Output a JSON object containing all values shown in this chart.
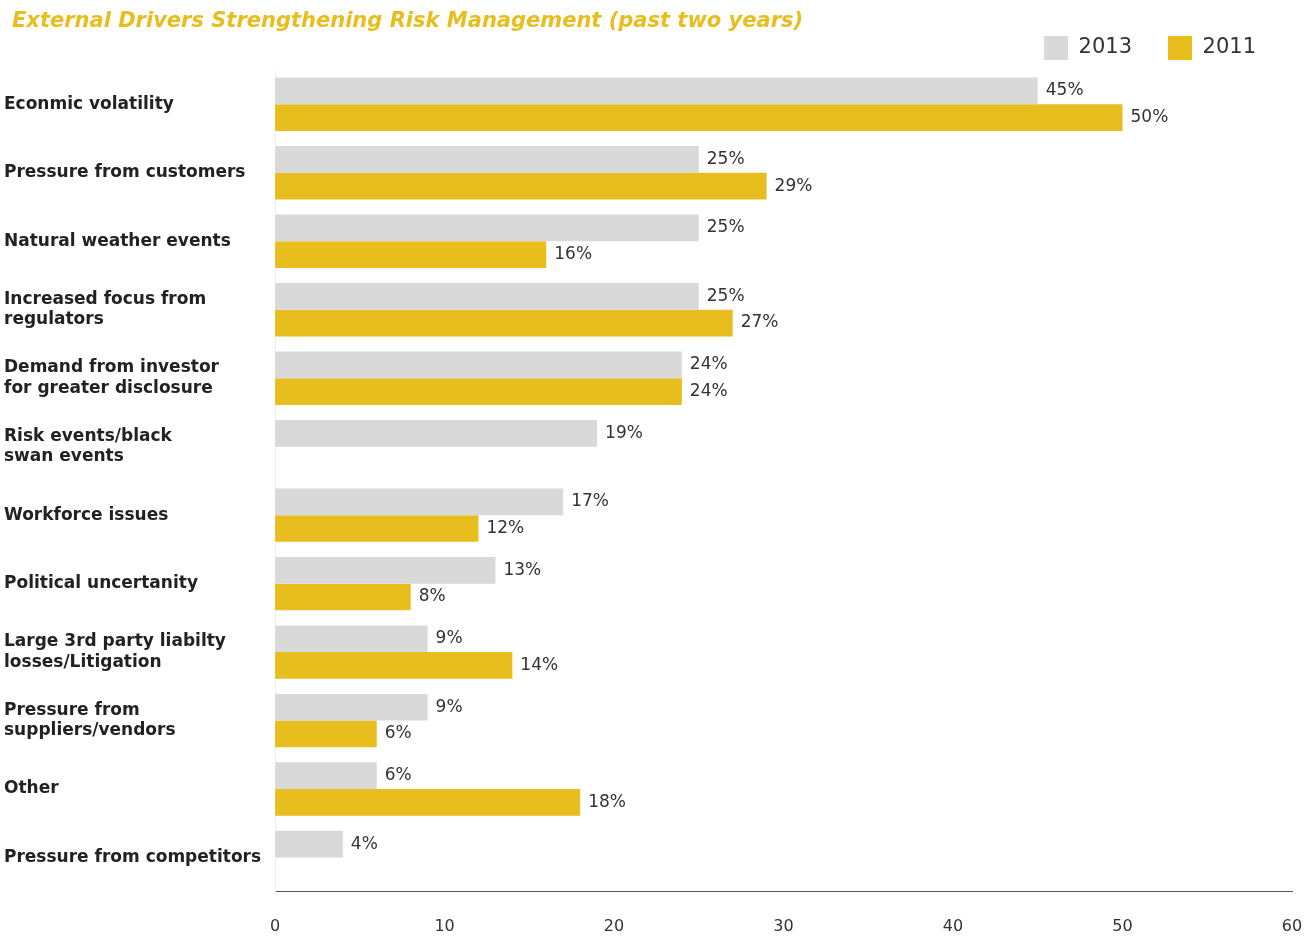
{
  "chart_data": {
    "type": "bar",
    "orientation": "horizontal",
    "title": "External Drivers Strengthening Risk Management (past two years)",
    "categories": [
      "Econmic volatility",
      "Pressure from customers",
      "Natural weather events",
      "Increased focus from\nregulators",
      "Demand from investor\nfor greater disclosure",
      "Risk events/black\nswan events",
      "Workforce issues",
      "Political uncertanity",
      "Large 3rd party liabilty\nlosses/Litigation",
      "Pressure from\nsuppliers/vendors",
      "Other",
      "Pressure from competitors"
    ],
    "series": [
      {
        "name": "2013",
        "color": "#d9d9d9",
        "values": [
          45,
          25,
          25,
          25,
          24,
          19,
          17,
          13,
          9,
          9,
          6,
          4
        ],
        "value_labels": [
          "45%",
          "25%",
          "25%",
          "25%",
          "24%",
          "19%",
          "17%",
          "13%",
          "9%",
          "9%",
          "6%",
          "4%"
        ]
      },
      {
        "name": "2011",
        "color": "#e8be1e",
        "values": [
          50,
          29,
          16,
          27,
          24,
          null,
          12,
          8,
          14,
          6,
          18,
          null
        ],
        "value_labels": [
          "50%",
          "29%",
          "16%",
          "27%",
          "24%",
          null,
          "12%",
          "8%",
          "14%",
          "6%",
          "18%",
          null
        ]
      }
    ],
    "xlim": [
      0,
      60
    ],
    "xticks": [
      0,
      10,
      20,
      30,
      40,
      50,
      60
    ],
    "grid": false,
    "legend": "top right"
  }
}
